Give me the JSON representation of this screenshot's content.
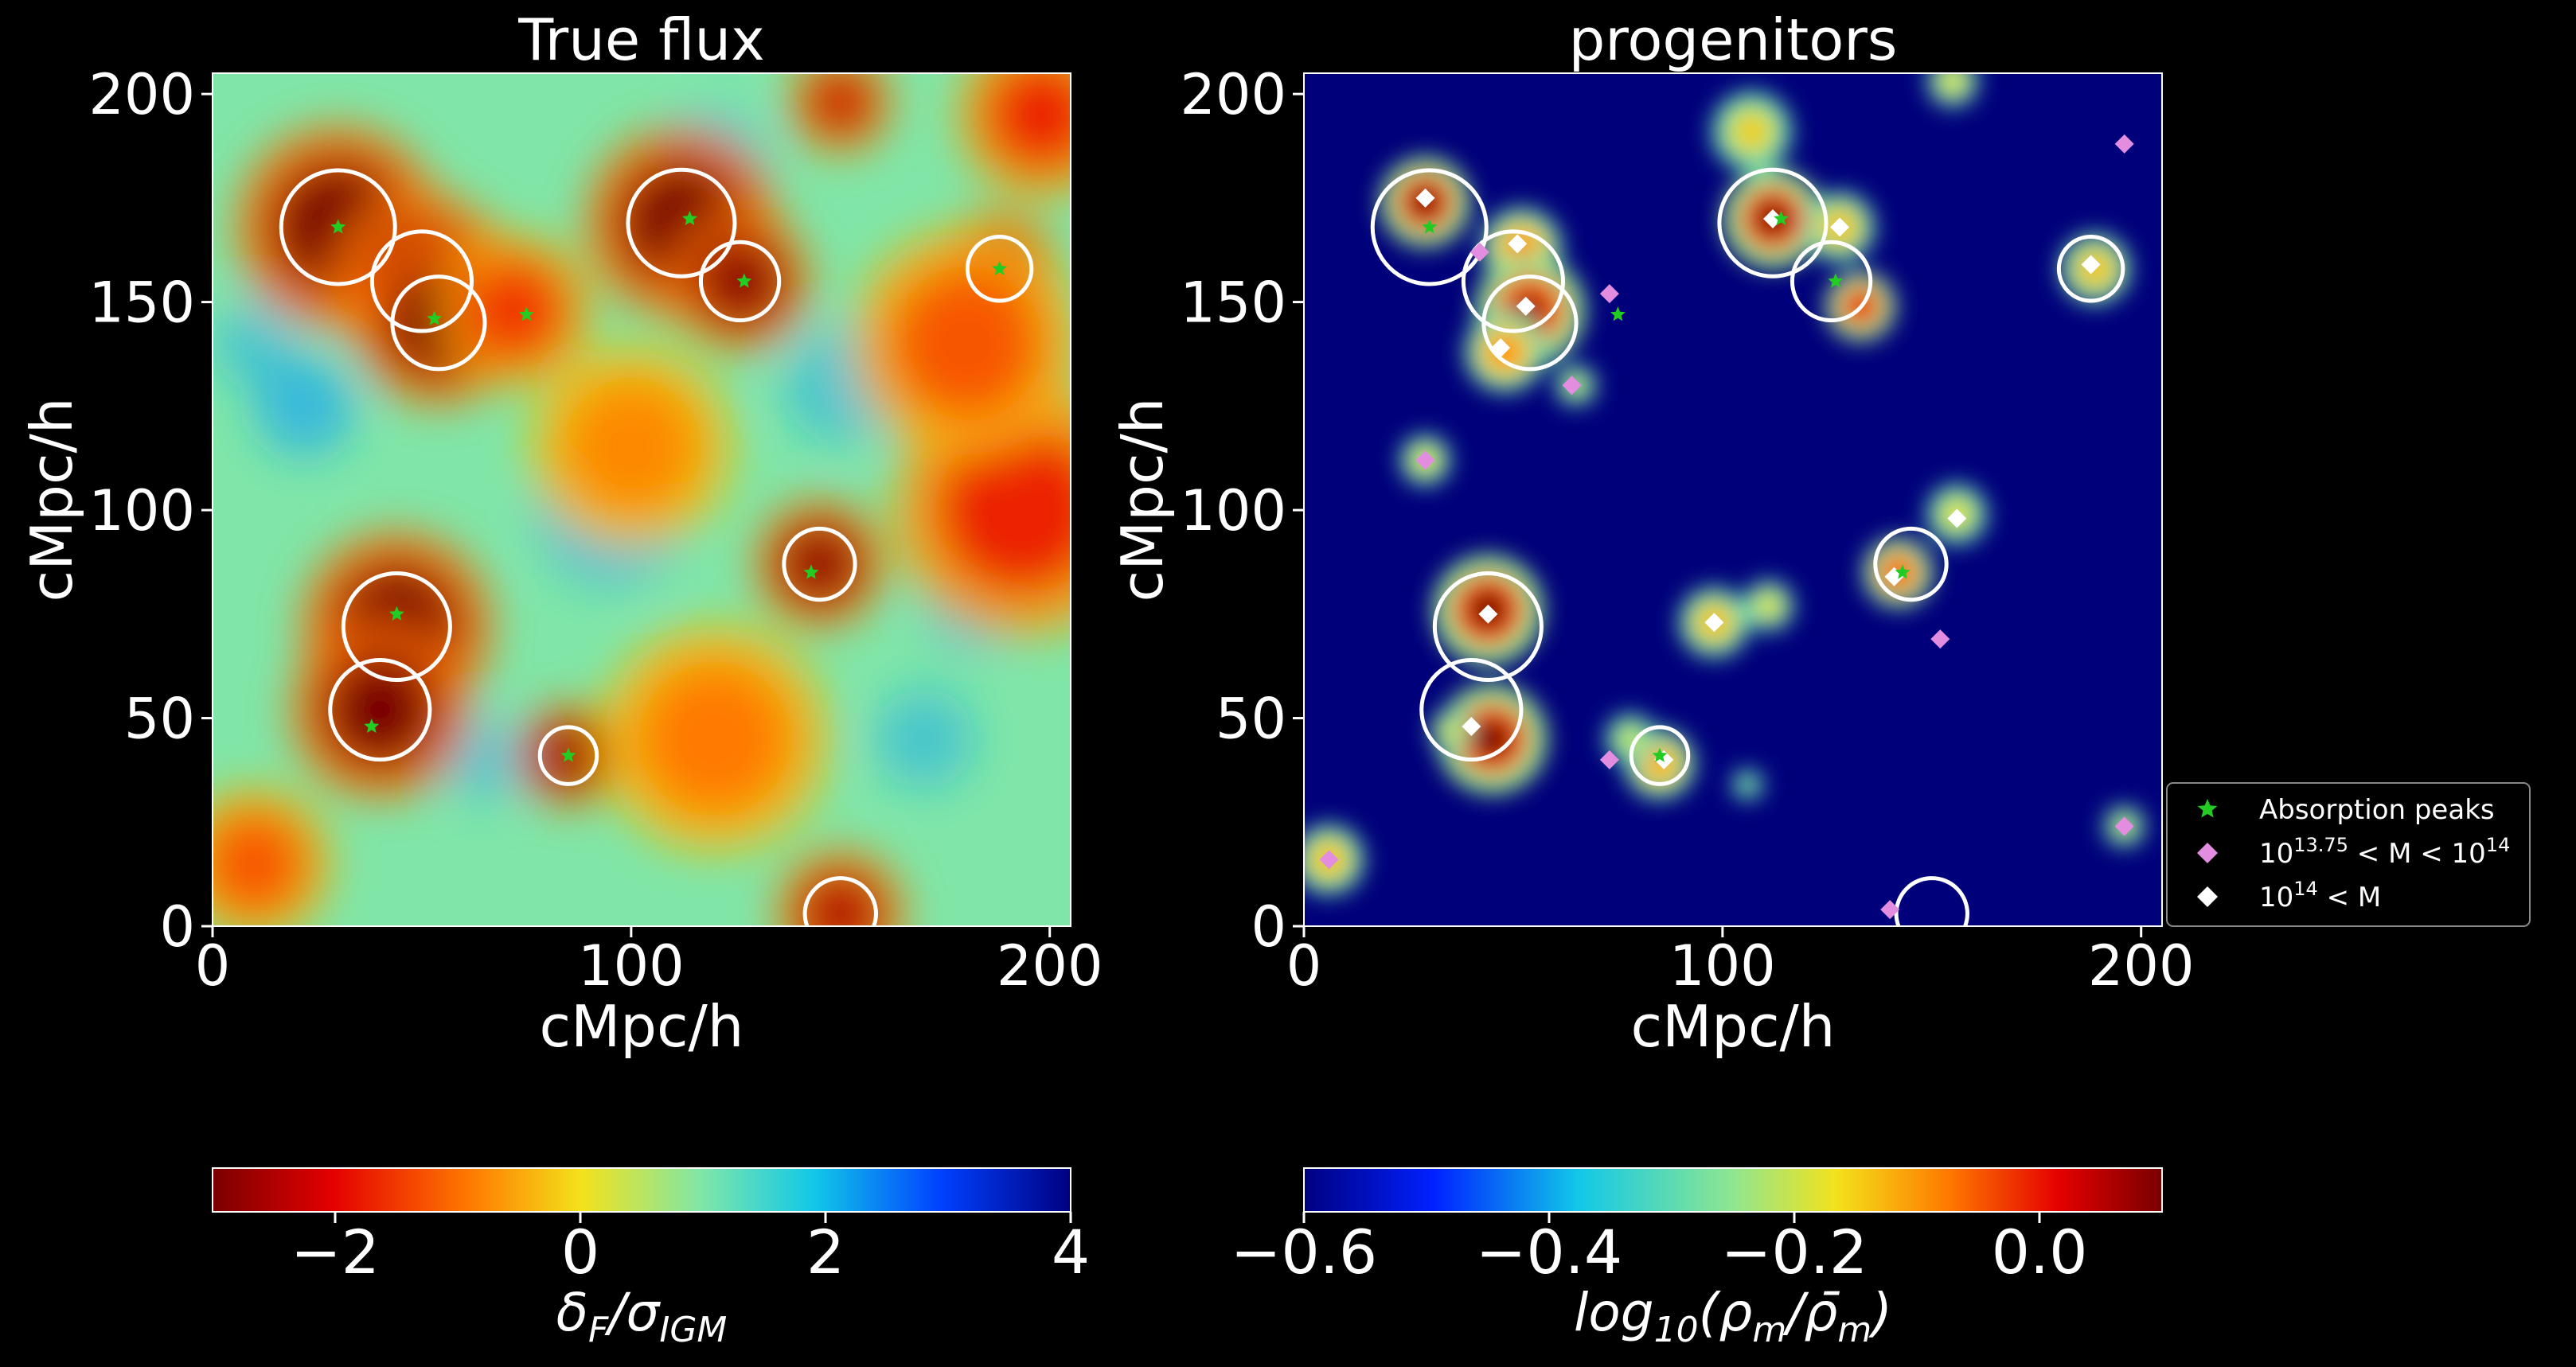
{
  "chart_data": [
    {
      "type": "heatmap",
      "title": "True flux",
      "xlabel": "cMpc/h",
      "ylabel": "cMpc/h",
      "xlim": [
        0,
        205
      ],
      "ylim": [
        0,
        205
      ],
      "xticks": [
        "0",
        "100",
        "200"
      ],
      "yticks": [
        "0",
        "50",
        "100",
        "150",
        "200"
      ],
      "colormap": "jet_r",
      "colorbar": {
        "label": "δF/σIGM",
        "range": [
          -3,
          4
        ],
        "ticks": [
          "−2",
          "0",
          "2",
          "4"
        ]
      },
      "background_color": "#7fe6a8",
      "peak_color": "#d60000",
      "contour_color": "#ffffff",
      "marker_color": "#22cc22",
      "absorption_regions": [
        {
          "x": 30,
          "y": 168,
          "r": 16,
          "level": 1.0
        },
        {
          "x": 50,
          "y": 155,
          "r": 14,
          "level": 0.9
        },
        {
          "x": 54,
          "y": 145,
          "r": 13,
          "level": 1.0
        },
        {
          "x": 72,
          "y": 148,
          "r": 12,
          "level": 0.55
        },
        {
          "x": 112,
          "y": 169,
          "r": 15,
          "level": 1.0
        },
        {
          "x": 126,
          "y": 155,
          "r": 11,
          "level": 0.95
        },
        {
          "x": 188,
          "y": 158,
          "r": 9,
          "level": 0.9
        },
        {
          "x": 198,
          "y": 195,
          "r": 13,
          "level": 0.6
        },
        {
          "x": 150,
          "y": 198,
          "r": 8,
          "level": 0.8
        },
        {
          "x": 44,
          "y": 72,
          "r": 15,
          "level": 1.0
        },
        {
          "x": 40,
          "y": 52,
          "r": 14,
          "level": 1.0
        },
        {
          "x": 85,
          "y": 41,
          "r": 8,
          "level": 0.95
        },
        {
          "x": 145,
          "y": 87,
          "r": 10,
          "level": 0.95
        },
        {
          "x": 193,
          "y": 100,
          "r": 20,
          "level": 0.6
        },
        {
          "x": 150,
          "y": 3,
          "r": 10,
          "level": 0.85
        },
        {
          "x": 120,
          "y": 45,
          "r": 18,
          "level": 0.35
        },
        {
          "x": 10,
          "y": 15,
          "r": 12,
          "level": 0.45
        },
        {
          "x": 100,
          "y": 115,
          "r": 16,
          "level": 0.3
        },
        {
          "x": 180,
          "y": 140,
          "r": 18,
          "level": 0.45
        }
      ],
      "markers": [
        {
          "x": 30,
          "y": 168
        },
        {
          "x": 53,
          "y": 146
        },
        {
          "x": 75,
          "y": 147
        },
        {
          "x": 114,
          "y": 170
        },
        {
          "x": 127,
          "y": 155
        },
        {
          "x": 188,
          "y": 158
        },
        {
          "x": 44,
          "y": 75
        },
        {
          "x": 38,
          "y": 48
        },
        {
          "x": 85,
          "y": 41
        },
        {
          "x": 143,
          "y": 85
        }
      ]
    },
    {
      "type": "heatmap",
      "title": "progenitors",
      "xlabel": "cMpc/h",
      "ylabel": "cMpc/h",
      "xlim": [
        0,
        205
      ],
      "ylim": [
        0,
        205
      ],
      "xticks": [
        "0",
        "100",
        "200"
      ],
      "yticks": [
        "0",
        "50",
        "100",
        "150",
        "200"
      ],
      "colormap": "jet",
      "colorbar": {
        "label": "log10(ρm/ρ̄m)",
        "range": [
          -0.6,
          0.1
        ],
        "ticks": [
          "−0.6",
          "−0.4",
          "−0.2",
          "0.0"
        ]
      },
      "background_color": "#00007a",
      "blobs": [
        {
          "x": 29,
          "y": 174,
          "r": 9,
          "level": 1.0
        },
        {
          "x": 52,
          "y": 163,
          "r": 8,
          "level": 0.7
        },
        {
          "x": 54,
          "y": 148,
          "r": 11,
          "level": 0.95
        },
        {
          "x": 48,
          "y": 138,
          "r": 8,
          "level": 0.7
        },
        {
          "x": 112,
          "y": 170,
          "r": 10,
          "level": 1.0
        },
        {
          "x": 128,
          "y": 168,
          "r": 7,
          "level": 0.6
        },
        {
          "x": 133,
          "y": 149,
          "r": 7,
          "level": 0.9
        },
        {
          "x": 107,
          "y": 191,
          "r": 8,
          "level": 0.55
        },
        {
          "x": 189,
          "y": 158,
          "r": 7,
          "level": 0.6
        },
        {
          "x": 29,
          "y": 112,
          "r": 5,
          "level": 0.5
        },
        {
          "x": 65,
          "y": 130,
          "r": 4,
          "level": 0.45
        },
        {
          "x": 44,
          "y": 76,
          "r": 11,
          "level": 1.0
        },
        {
          "x": 45,
          "y": 45,
          "r": 11,
          "level": 1.0
        },
        {
          "x": 35,
          "y": 47,
          "r": 4,
          "level": 0.5
        },
        {
          "x": 85,
          "y": 39,
          "r": 7,
          "level": 0.65
        },
        {
          "x": 78,
          "y": 45,
          "r": 5,
          "level": 0.45
        },
        {
          "x": 98,
          "y": 73,
          "r": 7,
          "level": 0.6
        },
        {
          "x": 111,
          "y": 77,
          "r": 5,
          "level": 0.5
        },
        {
          "x": 142,
          "y": 85,
          "r": 7,
          "level": 0.8
        },
        {
          "x": 156,
          "y": 99,
          "r": 6,
          "level": 0.5
        },
        {
          "x": 6,
          "y": 16,
          "r": 7,
          "level": 0.6
        },
        {
          "x": 196,
          "y": 24,
          "r": 4,
          "level": 0.45
        },
        {
          "x": 106,
          "y": 34,
          "r": 3,
          "level": 0.35
        },
        {
          "x": 155,
          "y": 203,
          "r": 5,
          "level": 0.5
        }
      ],
      "halos_mid": [
        {
          "x": 196,
          "y": 188
        },
        {
          "x": 73,
          "y": 152
        },
        {
          "x": 64,
          "y": 130
        },
        {
          "x": 29,
          "y": 112
        },
        {
          "x": 152,
          "y": 69
        },
        {
          "x": 73,
          "y": 40
        },
        {
          "x": 6,
          "y": 16
        },
        {
          "x": 196,
          "y": 24
        },
        {
          "x": 140,
          "y": 4
        },
        {
          "x": 42,
          "y": 162
        }
      ],
      "halos_massive": [
        {
          "x": 29,
          "y": 175
        },
        {
          "x": 51,
          "y": 164
        },
        {
          "x": 53,
          "y": 149
        },
        {
          "x": 47,
          "y": 139
        },
        {
          "x": 112,
          "y": 170
        },
        {
          "x": 128,
          "y": 168
        },
        {
          "x": 44,
          "y": 75
        },
        {
          "x": 40,
          "y": 48
        },
        {
          "x": 98,
          "y": 73
        },
        {
          "x": 141,
          "y": 84
        },
        {
          "x": 156,
          "y": 98
        },
        {
          "x": 188,
          "y": 159
        },
        {
          "x": 86,
          "y": 40
        }
      ],
      "peaks": [
        {
          "x": 30,
          "y": 168
        },
        {
          "x": 75,
          "y": 147
        },
        {
          "x": 114,
          "y": 170
        },
        {
          "x": 127,
          "y": 155
        },
        {
          "x": 143,
          "y": 85
        },
        {
          "x": 85,
          "y": 41
        }
      ],
      "legend": {
        "position": "right",
        "entries": [
          {
            "label": "Absorption peaks",
            "marker": "star",
            "color": "#22cc22"
          },
          {
            "label": "10^13.75 < M < 10^14",
            "marker": "diamond",
            "color": "#e38de0"
          },
          {
            "label": "10^14 < M",
            "marker": "diamond",
            "color": "#ffffff"
          }
        ]
      }
    }
  ]
}
